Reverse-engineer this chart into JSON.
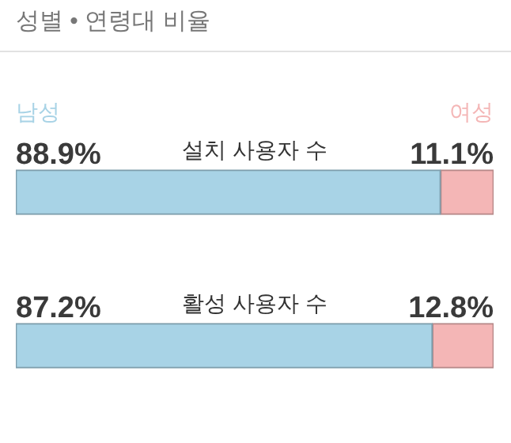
{
  "chart_data": {
    "type": "bar",
    "orientation": "horizontal",
    "stacked": true,
    "title": "성별 • 연령대 비율",
    "legend": "top",
    "xlim": [
      0,
      100
    ],
    "categories": [
      "설치 사용자 수",
      "활성 사용자 수"
    ],
    "series": [
      {
        "name": "남성",
        "color": "#a8d3e6",
        "values": [
          88.9,
          87.2
        ],
        "value_labels": [
          "88.9%",
          "87.2%"
        ]
      },
      {
        "name": "여성",
        "color": "#f4b6b6",
        "values": [
          11.1,
          12.8
        ],
        "value_labels": [
          "11.1%",
          "12.8%"
        ]
      }
    ]
  }
}
